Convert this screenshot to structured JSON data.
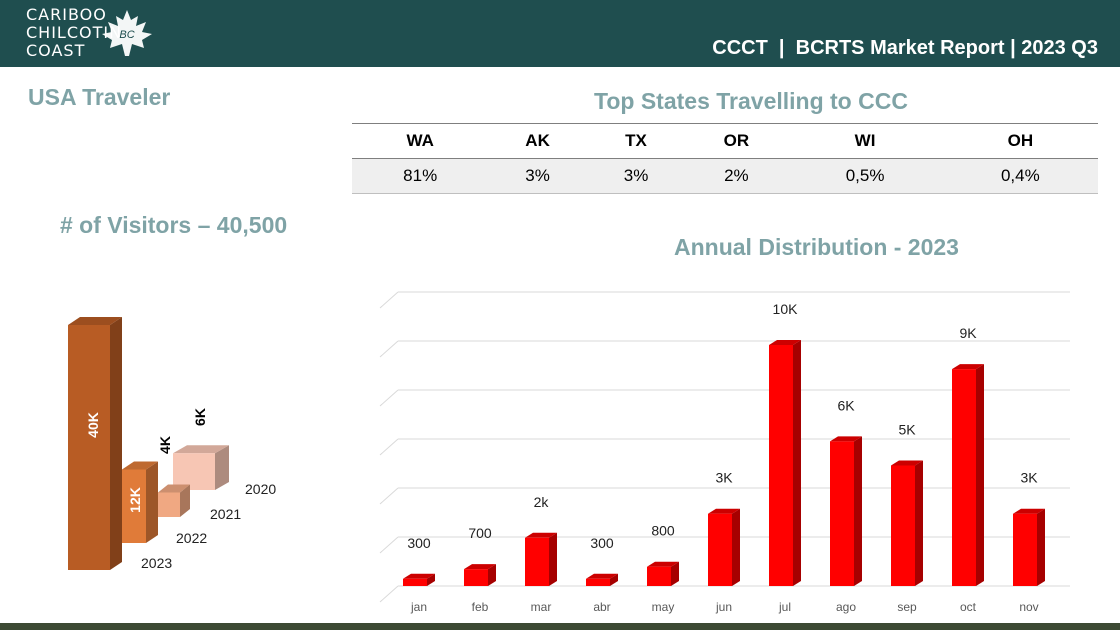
{
  "header": {
    "logo_lines": [
      "CARIBOO",
      "CHILCOTIN",
      "COAST"
    ],
    "logo_badge": "BC",
    "report_title": "CCCT  |  BCRTS Market Report | 2023 Q3"
  },
  "section_title": "USA Traveler",
  "visitors_title": "# of Visitors – 40,500",
  "top_states": {
    "title": "Top States Travelling to CCC",
    "states": [
      {
        "code": "WA",
        "share": "81%"
      },
      {
        "code": "AK",
        "share": "3%"
      },
      {
        "code": "TX",
        "share": "3%"
      },
      {
        "code": "OR",
        "share": "2%"
      },
      {
        "code": "WI",
        "share": "0,5%"
      },
      {
        "code": "OH",
        "share": "0,4%"
      }
    ]
  },
  "colors": {
    "header_bg": "#1f4e4f",
    "title_teal": "#7fa3a6",
    "bar_red": "#ff0000",
    "bar_2023": "#b85c24",
    "bar_2022": "#e07b39",
    "bar_2021": "#f0a882",
    "bar_2020": "#f7c6b4",
    "footer_bar": "#3c4a34"
  },
  "chart_data": [
    {
      "type": "bar",
      "title": "# of Visitors – 40,500",
      "categories": [
        "2023",
        "2022",
        "2021",
        "2020"
      ],
      "values": [
        40000,
        12000,
        4000,
        6000
      ],
      "data_labels": [
        "40K",
        "12K",
        "4K",
        "6K"
      ],
      "style": "3d-depth"
    },
    {
      "type": "bar",
      "title": "Annual Distribution - 2023",
      "categories": [
        "jan",
        "feb",
        "mar",
        "abr",
        "may",
        "jun",
        "jul",
        "ago",
        "sep",
        "oct",
        "nov"
      ],
      "values": [
        300,
        700,
        2000,
        300,
        800,
        3000,
        10000,
        6000,
        5000,
        9000,
        3000
      ],
      "data_labels": [
        "300",
        "700",
        "2k",
        "300",
        "800",
        "3K",
        "10K",
        "6K",
        "5K",
        "9K",
        "3K"
      ],
      "xlabel": "",
      "ylabel": "",
      "grid": true
    }
  ]
}
